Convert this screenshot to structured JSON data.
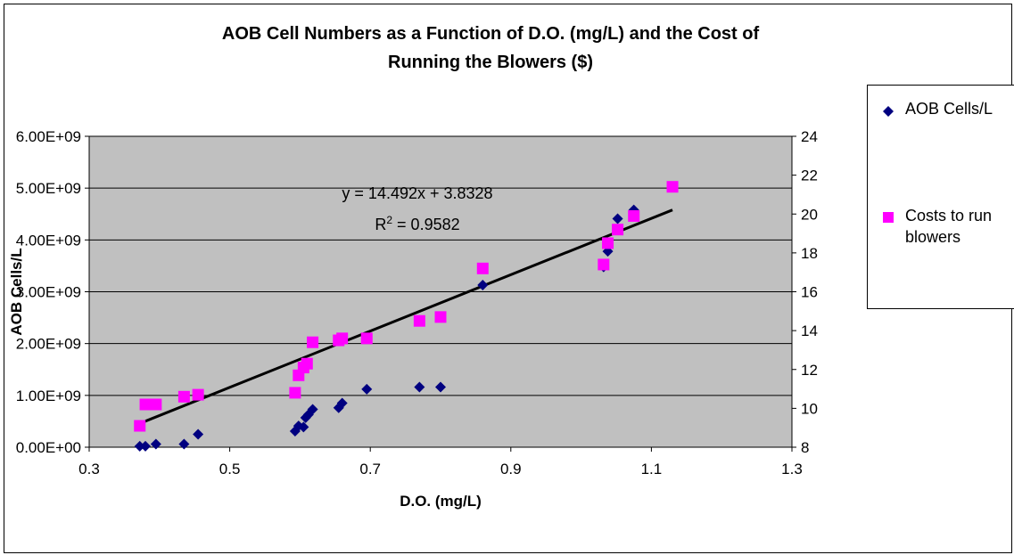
{
  "chart_data": {
    "type": "scatter",
    "title_lines": [
      "AOB Cell Numbers as a Function of D.O. (mg/L) and the Cost of",
      "Running the Blowers ($)"
    ],
    "xlabel": "D.O. (mg/L)",
    "ylabel": "AOB Cells/L",
    "y2label": "",
    "xlim": [
      0.3,
      1.3
    ],
    "ylim": [
      0,
      6000000000
    ],
    "y2lim": [
      8,
      24
    ],
    "x_ticks": [
      "0.3",
      "0.5",
      "0.7",
      "0.9",
      "1.1",
      "1.3"
    ],
    "x_tick_values": [
      0.3,
      0.5,
      0.7,
      0.9,
      1.1,
      1.3
    ],
    "y_ticks": [
      "0.00E+00",
      "1.00E+09",
      "2.00E+09",
      "3.00E+09",
      "4.00E+09",
      "5.00E+09",
      "6.00E+09"
    ],
    "y_tick_values": [
      0,
      1000000000,
      2000000000,
      3000000000,
      4000000000,
      5000000000,
      6000000000
    ],
    "y2_ticks": [
      "8",
      "10",
      "12",
      "14",
      "16",
      "18",
      "20",
      "22",
      "24"
    ],
    "y2_tick_values": [
      8,
      10,
      12,
      14,
      16,
      18,
      20,
      22,
      24
    ],
    "grid": "horizontal major gridlines",
    "plot_background": "#c0c0c0",
    "legend_position": "right",
    "series": [
      {
        "name": "AOB Cells/L",
        "axis": "left",
        "marker": "diamond",
        "color": "#000080",
        "points": [
          {
            "x": 0.372,
            "y": 20000000
          },
          {
            "x": 0.38,
            "y": 20000000
          },
          {
            "x": 0.395,
            "y": 60000000
          },
          {
            "x": 0.435,
            "y": 60000000
          },
          {
            "x": 0.455,
            "y": 250000000
          },
          {
            "x": 0.593,
            "y": 310000000
          },
          {
            "x": 0.598,
            "y": 410000000
          },
          {
            "x": 0.605,
            "y": 390000000
          },
          {
            "x": 0.608,
            "y": 570000000
          },
          {
            "x": 0.612,
            "y": 630000000
          },
          {
            "x": 0.618,
            "y": 730000000
          },
          {
            "x": 0.655,
            "y": 760000000
          },
          {
            "x": 0.66,
            "y": 850000000
          },
          {
            "x": 0.695,
            "y": 1120000000
          },
          {
            "x": 0.77,
            "y": 1160000000
          },
          {
            "x": 0.8,
            "y": 1160000000
          },
          {
            "x": 0.86,
            "y": 3130000000
          },
          {
            "x": 1.032,
            "y": 3480000000
          },
          {
            "x": 1.038,
            "y": 3780000000
          },
          {
            "x": 1.052,
            "y": 4410000000
          },
          {
            "x": 1.075,
            "y": 4580000000
          }
        ]
      },
      {
        "name": "Costs to run blowers",
        "axis": "right",
        "marker": "square",
        "color": "#ff00ff",
        "points": [
          {
            "x": 0.372,
            "y": 9.1
          },
          {
            "x": 0.38,
            "y": 10.2
          },
          {
            "x": 0.395,
            "y": 10.2
          },
          {
            "x": 0.435,
            "y": 10.6
          },
          {
            "x": 0.455,
            "y": 10.7
          },
          {
            "x": 0.593,
            "y": 10.8
          },
          {
            "x": 0.598,
            "y": 11.7
          },
          {
            "x": 0.605,
            "y": 12.1
          },
          {
            "x": 0.61,
            "y": 12.3
          },
          {
            "x": 0.618,
            "y": 13.4
          },
          {
            "x": 0.655,
            "y": 13.5
          },
          {
            "x": 0.66,
            "y": 13.6
          },
          {
            "x": 0.695,
            "y": 13.6
          },
          {
            "x": 0.77,
            "y": 14.5
          },
          {
            "x": 0.8,
            "y": 14.7
          },
          {
            "x": 0.86,
            "y": 17.2
          },
          {
            "x": 1.032,
            "y": 17.4
          },
          {
            "x": 1.038,
            "y": 18.5
          },
          {
            "x": 1.052,
            "y": 19.2
          },
          {
            "x": 1.075,
            "y": 19.9
          },
          {
            "x": 1.13,
            "y": 21.4
          }
        ]
      }
    ],
    "trendline": {
      "axis": "right",
      "slope": 14.492,
      "intercept": 3.8328,
      "x_range": [
        0.372,
        1.13
      ],
      "color": "#000000",
      "equation_label": "y = 14.492x + 3.8328",
      "r2_prefix": "R",
      "r2_sup": "2",
      "r2_value": " = 0.9582"
    }
  }
}
